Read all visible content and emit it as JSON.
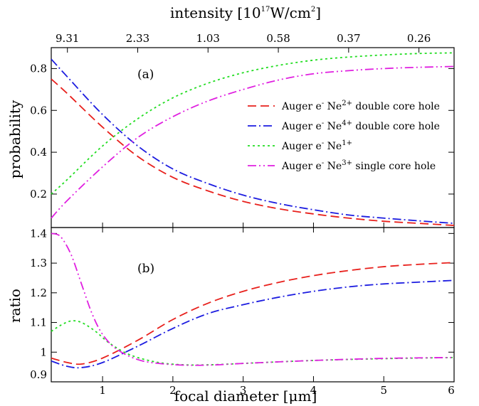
{
  "chart_data": [
    {
      "type": "line",
      "panel_label": "(a)",
      "ylabel": "probability",
      "top_axis": {
        "label_main": "intensity [10",
        "label_exp": "17",
        "label_unit": "W/cm",
        "label_unit_exp": "2",
        "label_close": "]",
        "ticks": [
          {
            "x": 0.5,
            "label": "9.31"
          },
          {
            "x": 1.5,
            "label": "2.33"
          },
          {
            "x": 2.5,
            "label": "1.03"
          },
          {
            "x": 3.5,
            "label": "0.58"
          },
          {
            "x": 4.5,
            "label": "0.37"
          },
          {
            "x": 5.5,
            "label": "0.26"
          }
        ]
      },
      "xlim": [
        0.27,
        6
      ],
      "ylim": [
        0.04,
        0.9
      ],
      "yticks": [
        0.2,
        0.4,
        0.6,
        0.8
      ],
      "ytick_labels": [
        "0.2",
        "0.4",
        "0.6",
        "0.8"
      ],
      "legend_position": "right",
      "series": [
        {
          "key": "ne2",
          "legend": {
            "prefix": "Auger e",
            "sup1": "-",
            "mid": " Ne",
            "sup2": "2+",
            "suffix": " double core hole"
          },
          "color": "#e8201c",
          "dash": "12,6",
          "x": [
            0.27,
            0.5,
            1.0,
            1.5,
            2.0,
            2.5,
            3.0,
            3.5,
            4.0,
            4.5,
            5.0,
            5.5,
            6.0
          ],
          "y": [
            0.75,
            0.68,
            0.52,
            0.38,
            0.28,
            0.215,
            0.165,
            0.13,
            0.105,
            0.085,
            0.07,
            0.06,
            0.05
          ]
        },
        {
          "key": "ne4",
          "legend": {
            "prefix": "Auger e",
            "sup1": "-",
            "mid": " Ne",
            "sup2": "4+",
            "suffix": " double core hole"
          },
          "color": "#1c1ce0",
          "dash": "12,4,2,4",
          "x": [
            0.27,
            0.5,
            1.0,
            1.5,
            2.0,
            2.5,
            3.0,
            3.5,
            4.0,
            4.5,
            5.0,
            5.5,
            6.0
          ],
          "y": [
            0.845,
            0.76,
            0.58,
            0.43,
            0.32,
            0.25,
            0.195,
            0.155,
            0.125,
            0.1,
            0.085,
            0.072,
            0.06
          ]
        },
        {
          "key": "ne1",
          "legend": {
            "prefix": "Auger e",
            "sup1": "-",
            "mid": " Ne",
            "sup2": "1+",
            "suffix": ""
          },
          "color": "#22dd22",
          "dash": "3,4",
          "x": [
            0.27,
            0.5,
            1.0,
            1.5,
            2.0,
            2.5,
            3.0,
            3.5,
            4.0,
            4.5,
            5.0,
            5.5,
            6.0
          ],
          "y": [
            0.2,
            0.27,
            0.43,
            0.56,
            0.66,
            0.73,
            0.78,
            0.815,
            0.84,
            0.855,
            0.865,
            0.872,
            0.875
          ]
        },
        {
          "key": "ne3",
          "legend": {
            "prefix": "Auger e",
            "sup1": "-",
            "mid": " Ne",
            "sup2": "3+",
            "suffix": " single core hole"
          },
          "color": "#e020e0",
          "dash": "12,4,2,4,2,4",
          "x": [
            0.27,
            0.5,
            1.0,
            1.5,
            2.0,
            2.5,
            3.0,
            3.5,
            4.0,
            4.5,
            5.0,
            5.5,
            6.0
          ],
          "y": [
            0.085,
            0.17,
            0.33,
            0.47,
            0.57,
            0.645,
            0.7,
            0.745,
            0.775,
            0.79,
            0.8,
            0.806,
            0.81
          ]
        }
      ]
    },
    {
      "type": "line",
      "panel_label": "(b)",
      "ylabel": "ratio",
      "xlabel_main": "focal diameter [",
      "xlabel_unit": "μm",
      "xlabel_close": "]",
      "xlim": [
        0.27,
        6
      ],
      "ylim": [
        0.9,
        1.42
      ],
      "xticks": [
        1,
        2,
        3,
        4,
        5,
        6
      ],
      "xtick_labels": [
        "1",
        "2",
        "3",
        "4",
        "5",
        "6"
      ],
      "yticks": [
        1.0,
        1.1,
        1.2,
        1.3,
        1.4
      ],
      "ytick_labels": [
        "1",
        "1.1",
        "1.2",
        "1.3",
        "1.4"
      ],
      "yticks_minor": [
        0.9
      ],
      "ytick_minor_labels": [
        "0.9"
      ],
      "series": [
        {
          "key": "ne2",
          "color": "#e8201c",
          "dash": "12,6",
          "x": [
            0.27,
            0.5,
            0.7,
            1.0,
            1.5,
            2.0,
            2.5,
            3.0,
            3.5,
            4.0,
            4.5,
            5.0,
            5.5,
            6.0
          ],
          "y": [
            0.98,
            0.965,
            0.96,
            0.98,
            1.04,
            1.11,
            1.165,
            1.205,
            1.235,
            1.258,
            1.275,
            1.288,
            1.296,
            1.302
          ]
        },
        {
          "key": "ne4",
          "color": "#1c1ce0",
          "dash": "12,4,2,4",
          "x": [
            0.27,
            0.5,
            0.7,
            1.0,
            1.5,
            2.0,
            2.5,
            3.0,
            3.5,
            4.0,
            4.5,
            5.0,
            5.5,
            6.0
          ],
          "y": [
            0.97,
            0.952,
            0.948,
            0.965,
            1.02,
            1.08,
            1.13,
            1.16,
            1.185,
            1.205,
            1.22,
            1.23,
            1.236,
            1.242
          ]
        },
        {
          "key": "ne1",
          "color": "#22dd22",
          "dash": "3,4",
          "x": [
            0.27,
            0.4,
            0.55,
            0.7,
            0.9,
            1.1,
            1.4,
            1.8,
            2.2,
            2.6,
            3.0,
            4.0,
            5.0,
            6.0
          ],
          "y": [
            1.07,
            1.09,
            1.105,
            1.1,
            1.07,
            1.03,
            0.99,
            0.965,
            0.957,
            0.958,
            0.962,
            0.972,
            0.978,
            0.982
          ]
        },
        {
          "key": "ne3",
          "color": "#e020e0",
          "dash": "12,4,2,4,2,4",
          "x": [
            0.27,
            0.4,
            0.55,
            0.7,
            0.85,
            1.0,
            1.2,
            1.5,
            1.8,
            2.2,
            2.6,
            3.0,
            4.0,
            5.0,
            6.0
          ],
          "y": [
            1.4,
            1.39,
            1.33,
            1.23,
            1.13,
            1.06,
            1.01,
            0.975,
            0.962,
            0.956,
            0.957,
            0.962,
            0.972,
            0.979,
            0.982
          ]
        }
      ]
    }
  ]
}
